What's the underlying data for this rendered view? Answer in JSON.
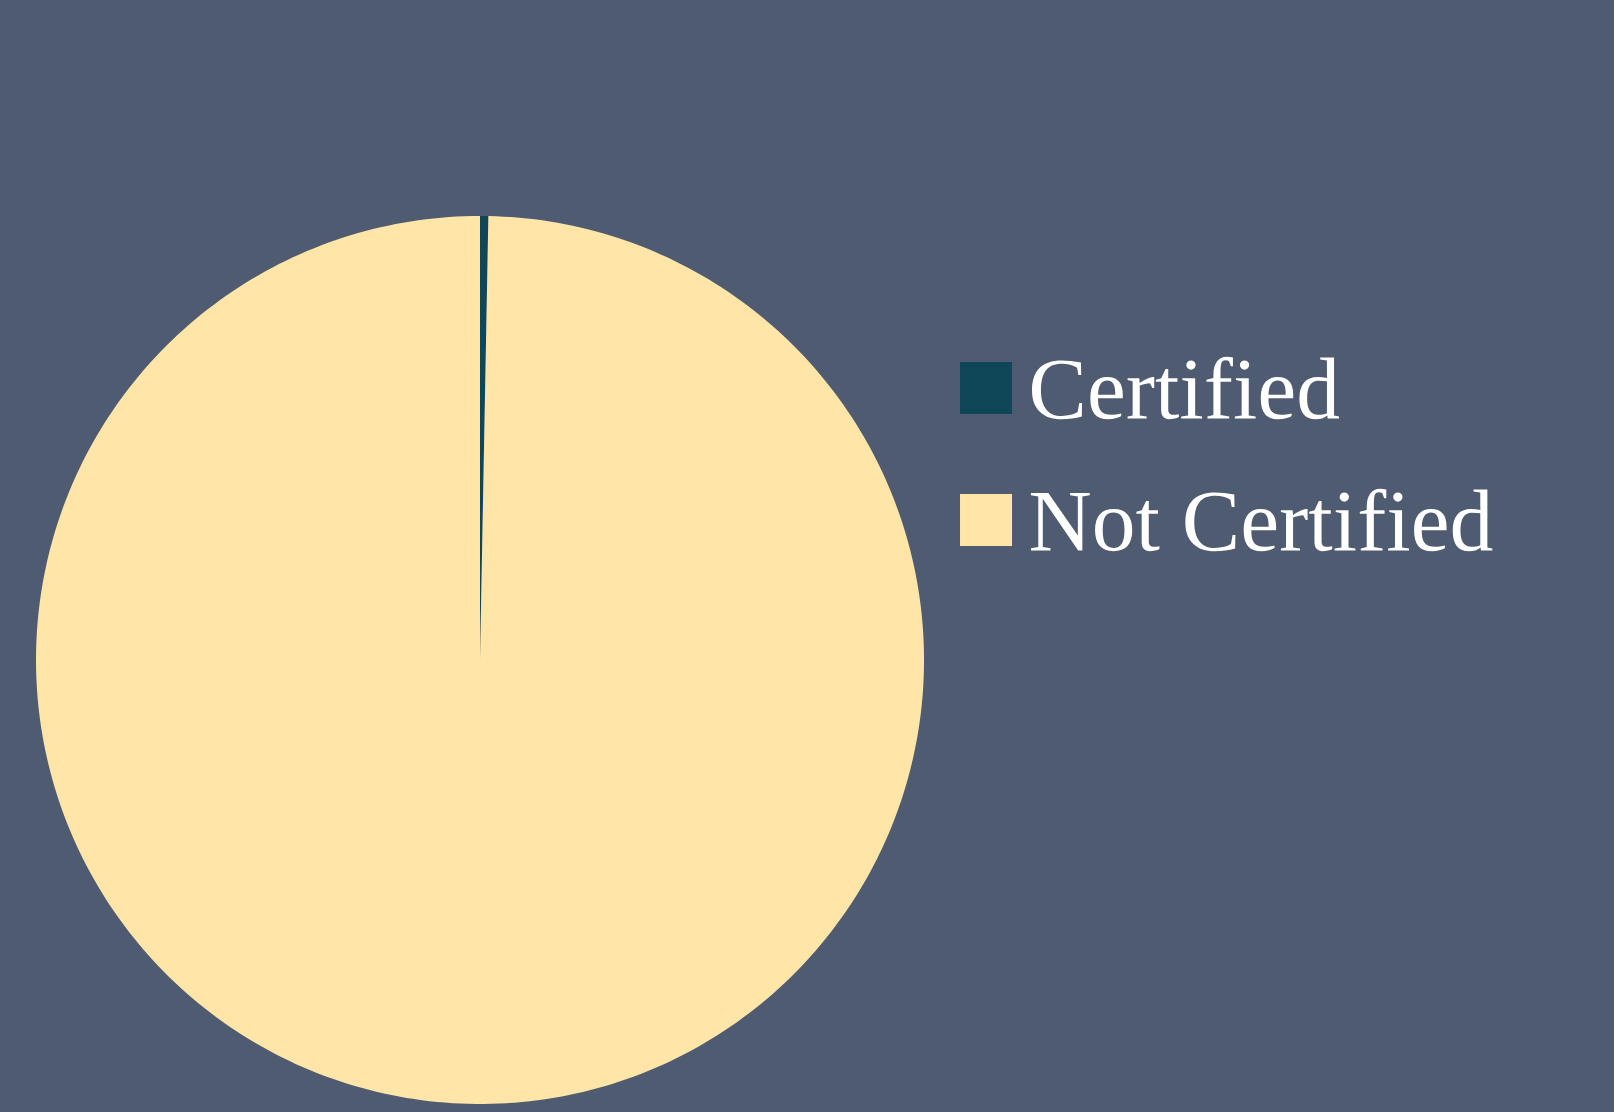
{
  "chart_data": {
    "type": "pie",
    "categories": [
      "Certified",
      "Not Certified"
    ],
    "values": [
      0.3,
      99.7
    ],
    "colors": [
      "#0f4658",
      "#ffe6a8"
    ],
    "legend": "right"
  }
}
